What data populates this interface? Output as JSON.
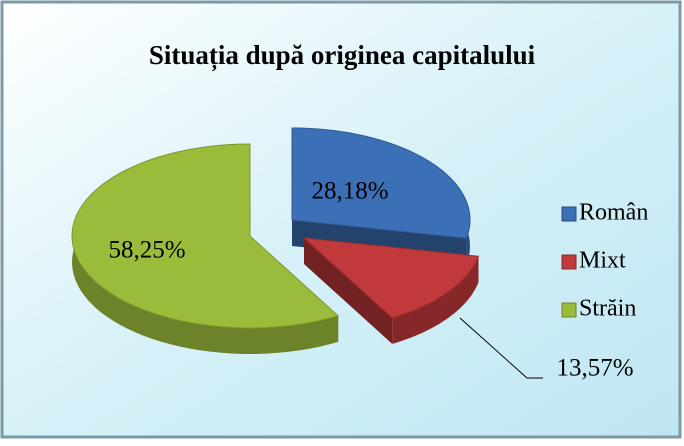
{
  "chart_data": {
    "type": "pie",
    "title": "Situația după originea capitalului",
    "categories": [
      "Român",
      "Mixt",
      "Străin"
    ],
    "values": [
      28.18,
      13.57,
      58.25
    ],
    "value_labels": [
      "28,18%",
      "13,57%",
      "58,25%"
    ],
    "colors": [
      "#3b6fb6",
      "#c0393b",
      "#9bbb3b"
    ],
    "legend": "right"
  }
}
